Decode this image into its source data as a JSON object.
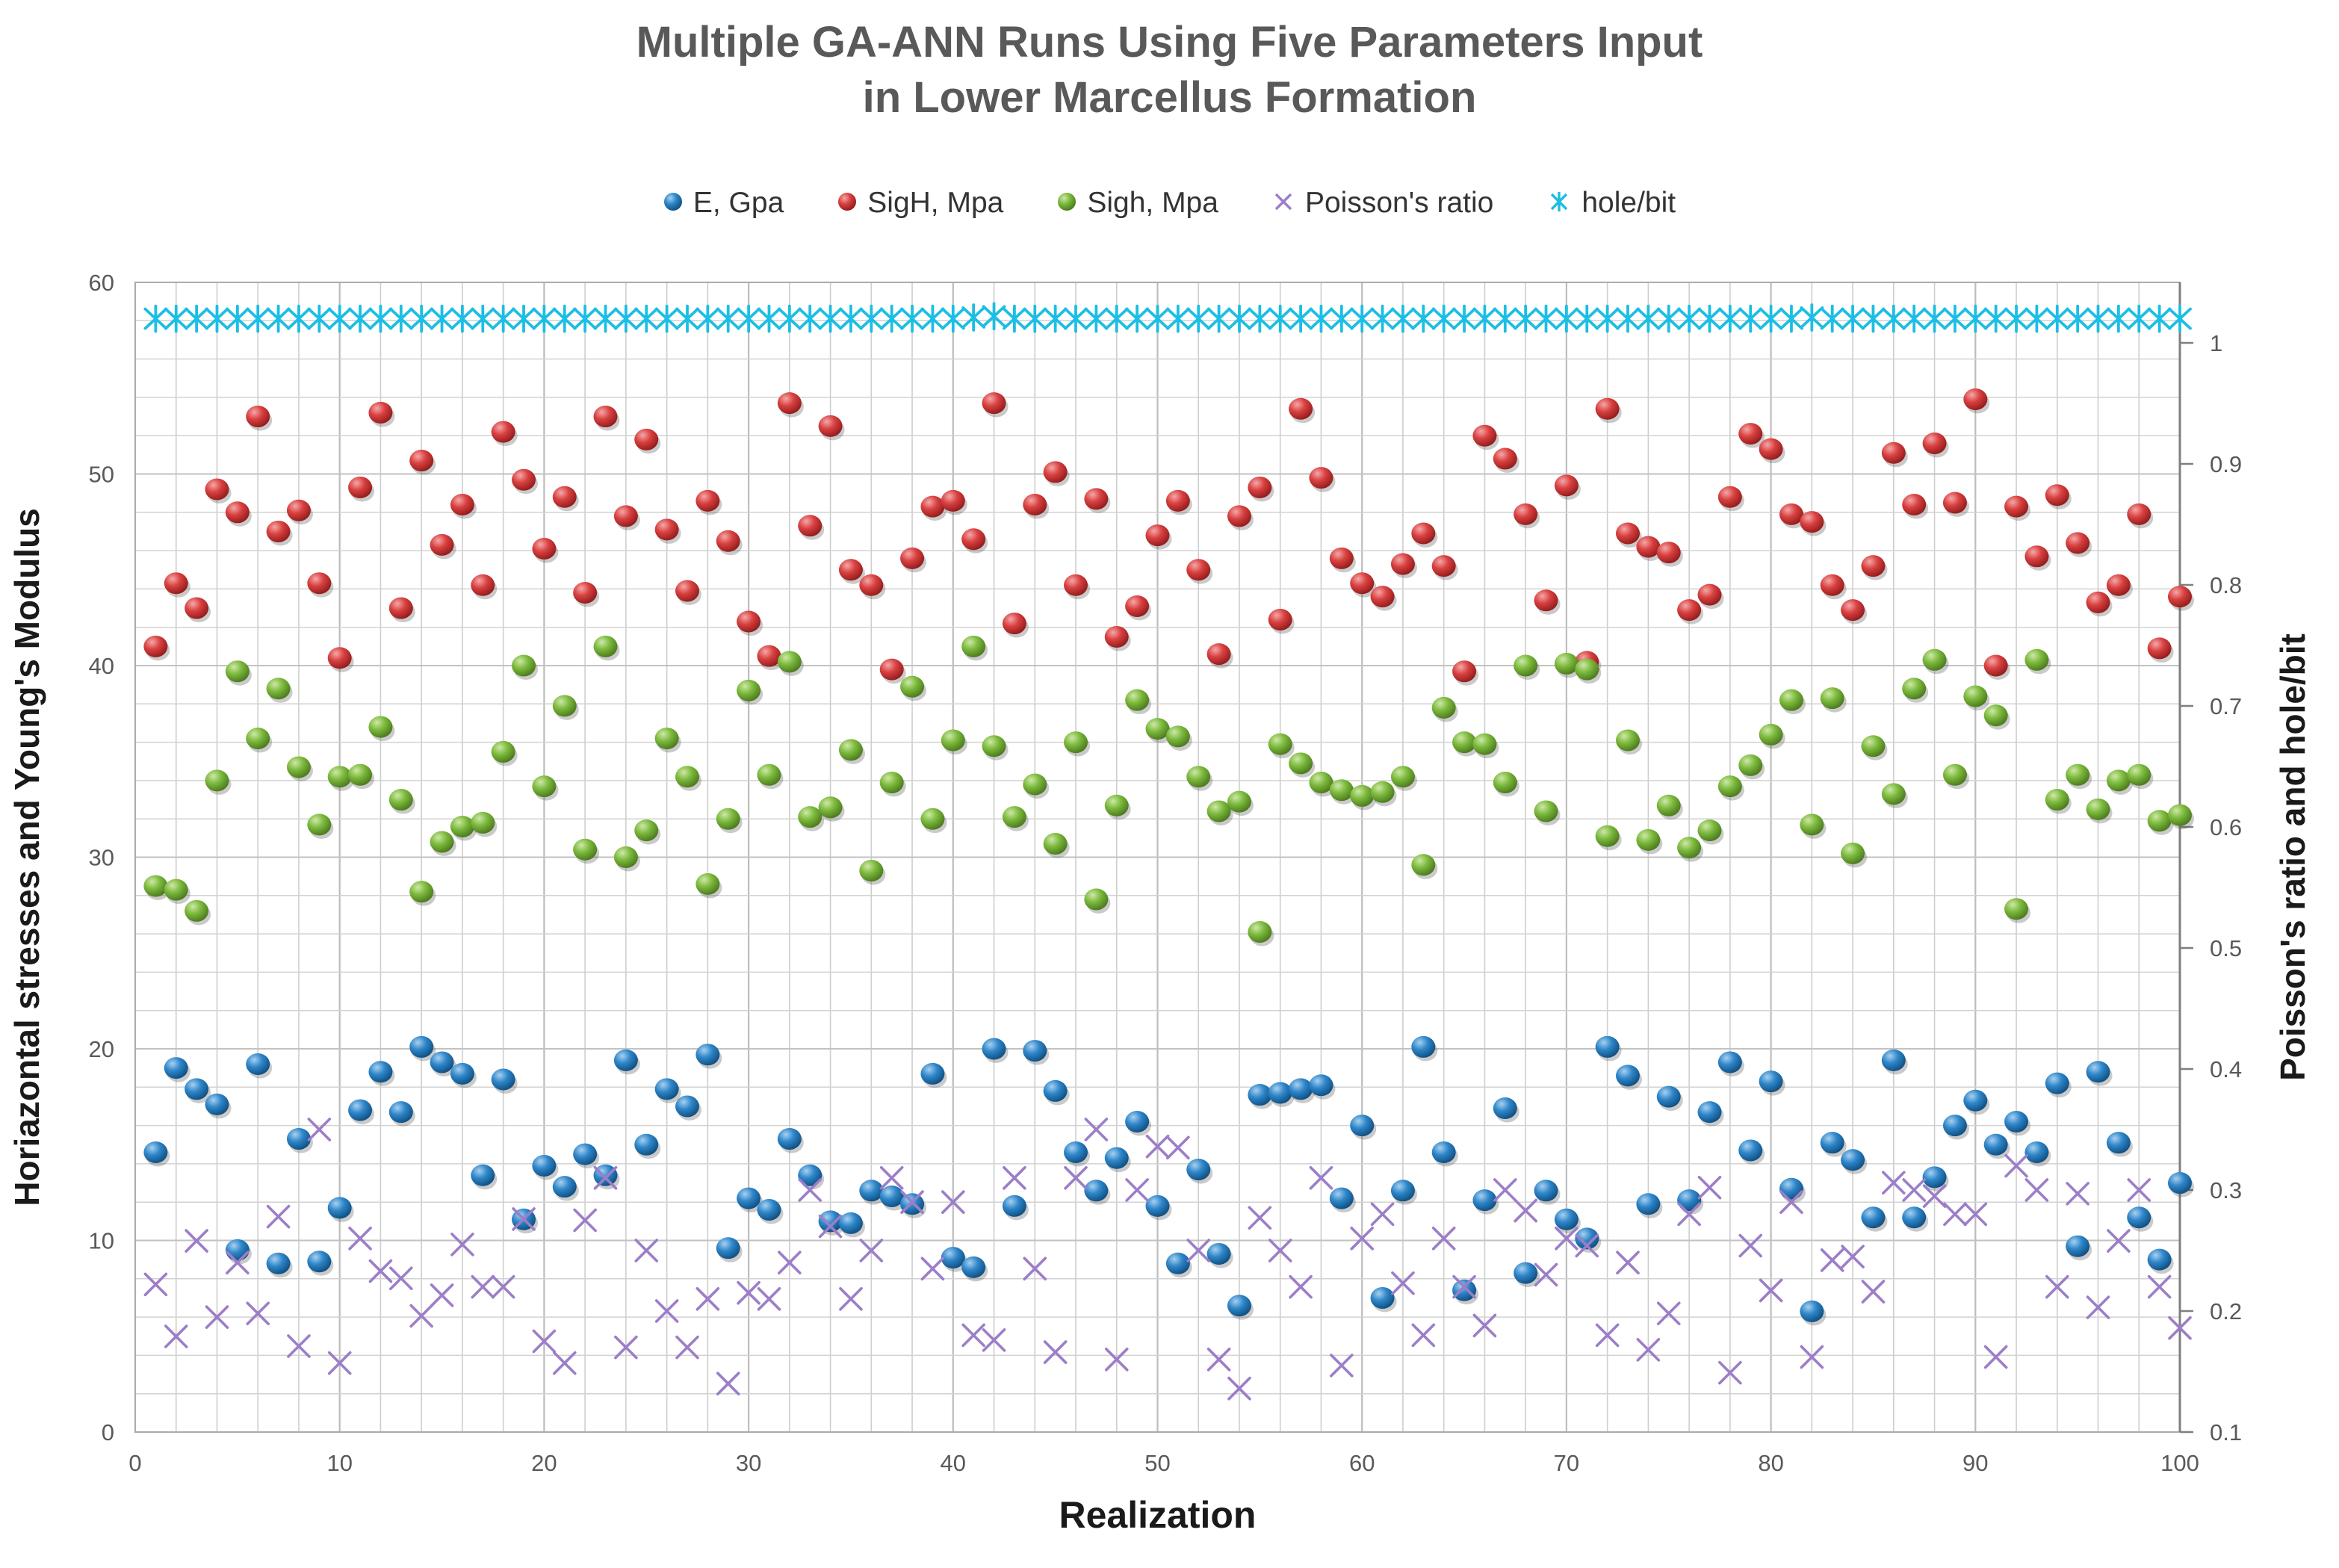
{
  "title": {
    "line1": "Multiple GA-ANN Runs Using Five Parameters Input",
    "line2": "in Lower Marcellus Formation"
  },
  "legend": [
    {
      "label": "E, Gpa",
      "marker": "sphere",
      "color": "#2E86C9"
    },
    {
      "label": "SigH, Mpa",
      "marker": "sphere",
      "color": "#D94040"
    },
    {
      "label": "Sigh, Mpa",
      "marker": "sphere",
      "color": "#7CBA3D"
    },
    {
      "label": "Poisson's ratio",
      "marker": "x",
      "color": "#9C7EC8"
    },
    {
      "label": "hole/bit",
      "marker": "star",
      "color": "#1CBEE4"
    }
  ],
  "chart_data": {
    "type": "scatter",
    "title": "Multiple GA-ANN Runs Using Five Parameters Input in Lower Marcellus Formation",
    "xlabel": "Realization",
    "ylabel_left": "Horiazontal  stresses and Young's Modulus",
    "ylabel_right": "Poisson's ratio and hole/bit",
    "x_axis": {
      "min": 0,
      "max": 100,
      "tick_step": 10,
      "grid_step": 2,
      "ticks": [
        0,
        10,
        20,
        30,
        40,
        50,
        60,
        70,
        80,
        90,
        100
      ]
    },
    "y_axis_left": {
      "min": 0,
      "max": 60,
      "tick_step": 10,
      "grid_step": 2,
      "ticks": [
        0,
        10,
        20,
        30,
        40,
        50,
        60
      ]
    },
    "y_axis_right": {
      "min": 0.1,
      "max": 1.05,
      "tick_step": 0.1,
      "ticks": [
        0.1,
        0.2,
        0.3,
        0.4,
        0.5,
        0.6,
        0.7,
        0.8,
        0.9,
        1
      ]
    },
    "grid": true,
    "legend_position": "top",
    "x_start": 1,
    "series": [
      {
        "name": "E, Gpa",
        "axis": "left",
        "marker": "sphere",
        "color": "#2E86C9",
        "values": [
          14.6,
          19.0,
          17.9,
          17.1,
          9.5,
          19.2,
          8.8,
          15.3,
          8.9,
          11.7,
          16.8,
          18.8,
          16.7,
          20.1,
          19.3,
          18.7,
          13.4,
          18.4,
          11.1,
          13.9,
          12.8,
          14.5,
          13.4,
          19.4,
          15.0,
          17.9,
          17.0,
          19.7,
          9.6,
          12.2,
          11.6,
          15.3,
          13.4,
          11.0,
          10.9,
          12.6,
          12.3,
          11.9,
          18.7,
          9.1,
          8.6,
          20.0,
          11.8,
          19.9,
          17.8,
          14.6,
          12.6,
          14.3,
          16.2,
          11.8,
          8.8,
          13.7,
          9.3,
          6.6,
          17.6,
          17.7,
          17.9,
          18.1,
          12.2,
          16.0,
          7.0,
          12.6,
          20.1,
          14.6,
          7.4,
          12.1,
          16.9,
          8.3,
          12.6,
          11.1,
          10.1,
          20.1,
          18.6,
          11.9,
          17.5,
          12.1,
          16.7,
          19.3,
          14.7,
          18.3,
          12.7,
          6.3,
          15.1,
          14.2,
          11.2,
          19.4,
          11.2,
          13.3,
          16.0,
          17.3,
          15.0,
          16.2,
          14.6,
          18.2,
          9.7,
          18.8,
          15.1,
          11.2,
          9.0,
          13.0
        ]
      },
      {
        "name": "SigH, Mpa",
        "axis": "left",
        "marker": "sphere",
        "color": "#D94040",
        "values": [
          41.0,
          44.3,
          43.0,
          49.2,
          48.0,
          53.0,
          47.0,
          48.1,
          44.3,
          40.4,
          49.3,
          53.2,
          43.0,
          50.7,
          46.3,
          48.4,
          44.2,
          52.2,
          49.7,
          46.1,
          48.8,
          43.8,
          53.0,
          47.8,
          51.8,
          47.1,
          43.9,
          48.6,
          46.5,
          42.3,
          40.5,
          53.7,
          47.3,
          52.5,
          45.0,
          44.2,
          39.8,
          45.6,
          48.3,
          48.6,
          46.6,
          53.7,
          42.2,
          48.4,
          50.1,
          44.2,
          48.7,
          41.5,
          43.1,
          46.8,
          48.6,
          45.0,
          40.6,
          47.8,
          49.3,
          42.4,
          53.4,
          49.8,
          45.6,
          44.3,
          43.6,
          45.3,
          46.9,
          45.2,
          39.7,
          52.0,
          50.8,
          47.9,
          43.4,
          49.4,
          40.2,
          53.4,
          46.9,
          46.2,
          45.9,
          42.9,
          43.7,
          48.8,
          52.1,
          51.3,
          47.9,
          47.5,
          44.2,
          42.9,
          45.2,
          51.1,
          48.4,
          51.6,
          48.5,
          53.9,
          40.0,
          48.3,
          45.7,
          48.9,
          46.4,
          43.3,
          44.2,
          47.9,
          40.9,
          43.6
        ]
      },
      {
        "name": "Sigh, Mpa",
        "axis": "left",
        "marker": "sphere",
        "color": "#7CBA3D",
        "values": [
          28.5,
          28.3,
          27.2,
          34.0,
          39.7,
          36.2,
          38.8,
          34.7,
          31.7,
          34.2,
          34.3,
          36.8,
          33.0,
          28.2,
          30.8,
          31.6,
          31.8,
          35.5,
          40.0,
          33.7,
          37.9,
          30.4,
          41.0,
          30.0,
          31.4,
          36.2,
          34.2,
          28.6,
          32.0,
          38.7,
          34.3,
          40.2,
          32.1,
          32.6,
          35.6,
          29.3,
          33.9,
          38.9,
          32.0,
          36.1,
          41.0,
          35.8,
          32.1,
          33.8,
          30.7,
          36.0,
          27.8,
          32.7,
          38.2,
          36.7,
          36.3,
          34.2,
          32.4,
          32.9,
          26.1,
          35.9,
          34.9,
          33.9,
          33.5,
          33.2,
          33.4,
          34.2,
          29.6,
          37.8,
          36.0,
          35.9,
          33.9,
          40.0,
          32.4,
          40.1,
          39.8,
          31.1,
          36.1,
          30.9,
          32.7,
          30.5,
          31.4,
          33.7,
          34.8,
          36.4,
          38.2,
          31.7,
          38.3,
          30.2,
          35.8,
          33.3,
          38.8,
          40.3,
          34.3,
          38.4,
          37.4,
          27.3,
          40.3,
          33.0,
          34.3,
          32.5,
          34.0,
          34.3,
          31.9,
          32.2
        ]
      },
      {
        "name": "Poisson's ratio",
        "axis": "right",
        "marker": "x",
        "color": "#9C7EC8",
        "values": [
          0.222,
          0.179,
          0.258,
          0.195,
          0.24,
          0.198,
          0.278,
          0.171,
          0.35,
          0.157,
          0.26,
          0.233,
          0.227,
          0.196,
          0.213,
          0.255,
          0.22,
          0.22,
          0.276,
          0.175,
          0.157,
          0.275,
          0.31,
          0.17,
          0.25,
          0.2,
          0.17,
          0.21,
          0.14,
          0.215,
          0.21,
          0.24,
          0.3,
          0.27,
          0.21,
          0.25,
          0.31,
          0.29,
          0.235,
          0.29,
          0.18,
          0.176,
          0.31,
          0.235,
          0.166,
          0.31,
          0.35,
          0.16,
          0.3,
          0.336,
          0.335,
          0.25,
          0.16,
          0.136,
          0.277,
          0.25,
          0.22,
          0.31,
          0.155,
          0.26,
          0.28,
          0.223,
          0.18,
          0.26,
          0.22,
          0.188,
          0.3,
          0.283,
          0.23,
          0.26,
          0.254,
          0.18,
          0.24,
          0.168,
          0.198,
          0.28,
          0.302,
          0.149,
          0.254,
          0.217,
          0.29,
          0.162,
          0.242,
          0.245,
          0.216,
          0.306,
          0.3,
          0.295,
          0.28,
          0.28,
          0.162,
          0.32,
          0.3,
          0.22,
          0.297,
          0.203,
          0.258,
          0.3,
          0.22,
          0.186
        ]
      },
      {
        "name": "hole/bit",
        "axis": "right",
        "marker": "star",
        "color": "#1CBEE4",
        "values": [
          1.02,
          1.02,
          1.02,
          1.02,
          1.02,
          1.02,
          1.02,
          1.02,
          1.02,
          1.02,
          1.02,
          1.02,
          1.02,
          1.02,
          1.02,
          1.02,
          1.02,
          1.02,
          1.02,
          1.02,
          1.02,
          1.02,
          1.02,
          1.02,
          1.02,
          1.02,
          1.02,
          1.02,
          1.02,
          1.02,
          1.02,
          1.02,
          1.02,
          1.02,
          1.02,
          1.02,
          1.02,
          1.02,
          1.02,
          1.02,
          1.021,
          1.022,
          1.02,
          1.02,
          1.02,
          1.02,
          1.02,
          1.02,
          1.02,
          1.02,
          1.02,
          1.02,
          1.02,
          1.02,
          1.02,
          1.02,
          1.02,
          1.02,
          1.02,
          1.02,
          1.02,
          1.02,
          1.02,
          1.02,
          1.02,
          1.02,
          1.02,
          1.02,
          1.02,
          1.02,
          1.02,
          1.02,
          1.02,
          1.02,
          1.02,
          1.02,
          1.02,
          1.02,
          1.02,
          1.02,
          1.02,
          1.021,
          1.02,
          1.02,
          1.02,
          1.02,
          1.02,
          1.02,
          1.02,
          1.02,
          1.02,
          1.02,
          1.02,
          1.02,
          1.02,
          1.02,
          1.02,
          1.02,
          1.02,
          1.02
        ]
      }
    ]
  }
}
